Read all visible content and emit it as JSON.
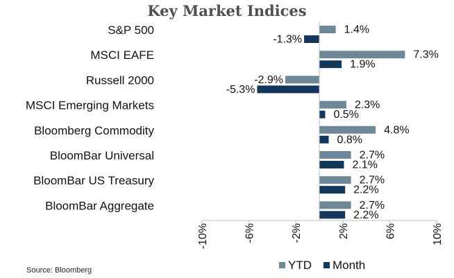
{
  "chart_data": {
    "type": "bar",
    "orientation": "horizontal",
    "title": "Key Market Indices",
    "categories": [
      "S&P 500",
      "MSCI EAFE",
      "Russell 2000",
      "MSCI Emerging Markets",
      "Bloomberg Commodity",
      "BloomBar Universal",
      "BloomBar US Treasury",
      "BloomBar Aggregate"
    ],
    "series": [
      {
        "name": "YTD",
        "color": "#6f8898",
        "values": [
          1.4,
          7.3,
          -2.9,
          2.3,
          4.8,
          2.7,
          2.7,
          2.7
        ],
        "labels": [
          "1.4%",
          "7.3%",
          "-2.9%",
          "2.3%",
          "4.8%",
          "2.7%",
          "2.7%",
          "2.7%"
        ]
      },
      {
        "name": "Month",
        "color": "#13375b",
        "values": [
          -1.3,
          1.9,
          -5.3,
          0.5,
          0.8,
          2.1,
          2.2,
          2.2
        ],
        "labels": [
          "-1.3%",
          "1.9%",
          "-5.3%",
          "0.5%",
          "0.8%",
          "2.1%",
          "2.2%",
          "2.2%"
        ]
      }
    ],
    "xlim": [
      -10,
      10
    ],
    "xticks": [
      -10,
      -6,
      -2,
      2,
      6,
      10
    ],
    "xtick_labels": [
      "-10%",
      "-6%",
      "-2%",
      "2%",
      "6%",
      "10%"
    ],
    "grid": false,
    "legend_position": "bottom"
  },
  "source_note": "Source: Bloomberg"
}
